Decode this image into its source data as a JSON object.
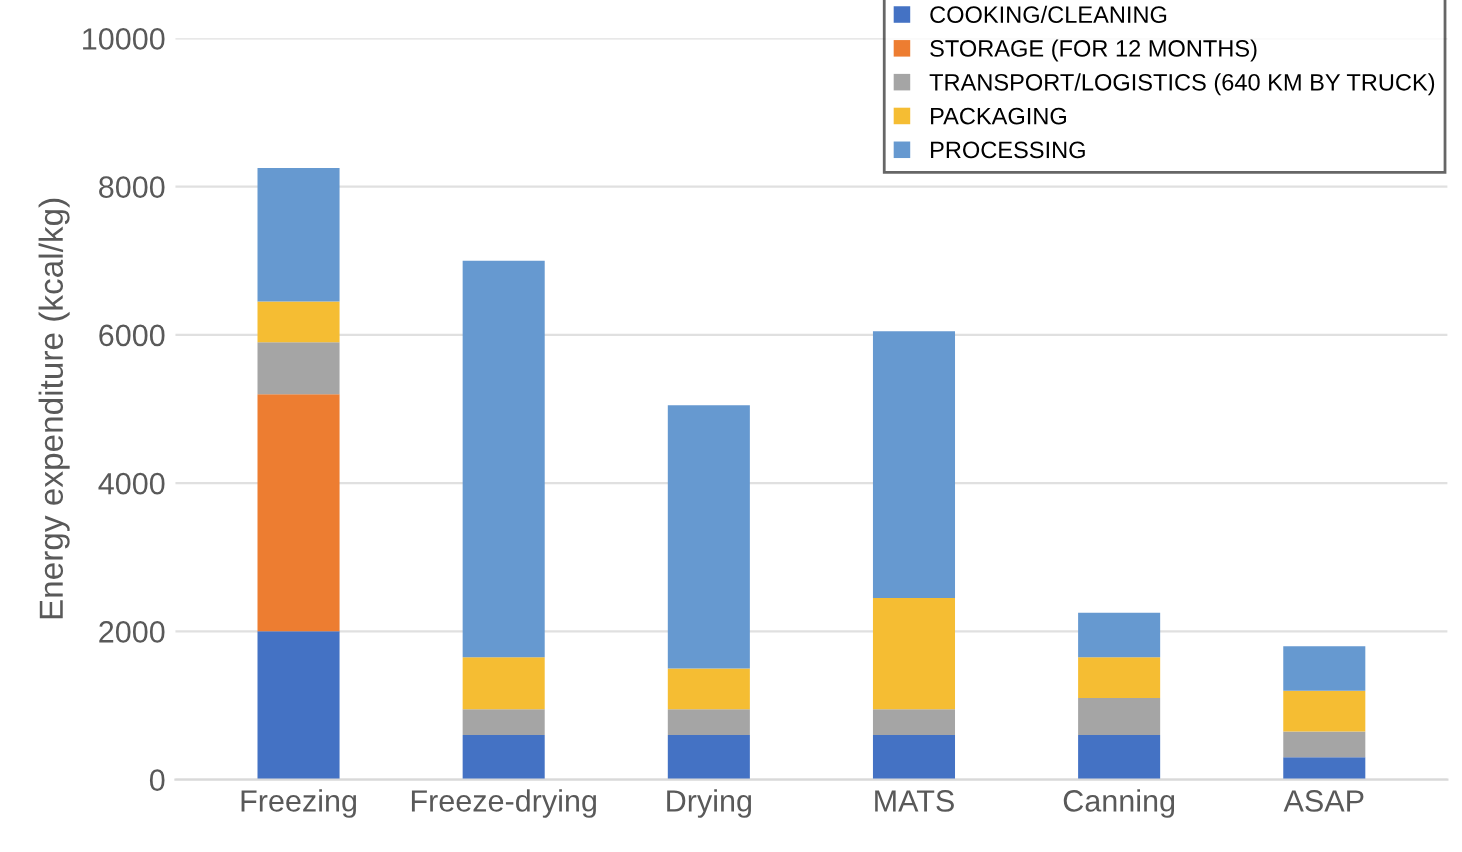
{
  "chart_data": {
    "type": "bar",
    "stacked": true,
    "ylabel": "Energy expenditure (kcal/kg)",
    "categories": [
      "Freezing",
      "Freeze-drying",
      "Drying",
      "MATS",
      "Canning",
      "ASAP"
    ],
    "series": [
      {
        "name": "COOKING/CLEANING",
        "color": "#4472c4",
        "values": [
          2000,
          600,
          600,
          600,
          600,
          300
        ]
      },
      {
        "name": "STORAGE (FOR 12 MONTHS)",
        "color": "#ed7d31",
        "values": [
          3200,
          0,
          0,
          0,
          0,
          0
        ]
      },
      {
        "name": "TRANSPORT/LOGISTICS (640 KM BY TRUCK)",
        "color": "#a5a5a5",
        "values": [
          700,
          350,
          350,
          350,
          500,
          350
        ]
      },
      {
        "name": "PACKAGING",
        "color": "#f5bd33",
        "values": [
          550,
          700,
          550,
          1500,
          550,
          550
        ]
      },
      {
        "name": "PROCESSING",
        "color": "#6699d0",
        "values": [
          1800,
          5350,
          3550,
          3600,
          600,
          600
        ]
      }
    ],
    "ylim": [
      0,
      10000
    ],
    "yticks": [
      0,
      2000,
      4000,
      6000,
      8000,
      10000
    ],
    "grid": "y",
    "legend": "top right"
  }
}
